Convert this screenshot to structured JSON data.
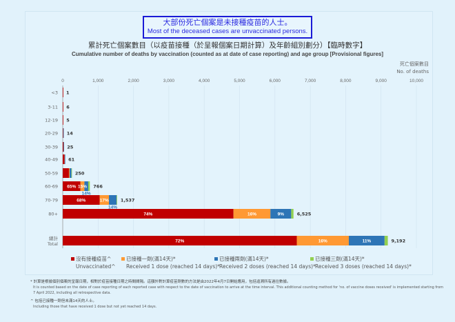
{
  "callout": {
    "zh": "大部份死亡個案是未接種疫苗的人士。",
    "en": "Most of the deceased cases are unvaccinated persons."
  },
  "chart_data": {
    "type": "bar",
    "orientation": "horizontal",
    "stacked": true,
    "title": "累計死亡個案數目（以疫苗接種（於呈報個案日期計算）及年齡組別劃分）【臨時數字】",
    "subtitle": "Cumulative number of deaths by vaccination (counted as at date of case reporting) and age group [Provisional figures]",
    "xlabel": "死亡個案數目 No. of deaths",
    "xlabel_zh": "死亡個案數目",
    "xlabel_en": "No. of deaths",
    "xlim": [
      0,
      10000
    ],
    "xticks": [
      "0",
      "1,000",
      "2,000",
      "3,000",
      "4,000",
      "5,000",
      "6,000",
      "7,000",
      "8,000",
      "9,000",
      "10,000"
    ],
    "grid": true,
    "legend_position": "bottom",
    "categories": [
      "<3",
      "3-11",
      "12-19",
      "20-29",
      "30-39",
      "40-49",
      "50-59",
      "60-69",
      "70-79",
      "80+",
      "總計 Total"
    ],
    "totals": [
      1,
      6,
      5,
      14,
      25,
      61,
      250,
      766,
      1537,
      6525,
      9192
    ],
    "total_labels": [
      "1",
      "6",
      "5",
      "14",
      "25",
      "61",
      "250",
      "766",
      "1,537",
      "6,525",
      "9,192"
    ],
    "series": [
      {
        "name": "沒有接種疫苗^ Unvaccinated^",
        "name_zh": "沒有接種疫苗^",
        "name_en": "Unvaccinated^",
        "color": "#c00000",
        "percent": [
          100,
          100,
          100,
          90,
          85,
          85,
          70,
          65,
          68,
          74,
          72
        ],
        "labels": [
          "",
          "",
          "",
          "",
          "",
          "",
          "",
          "65%",
          "68%",
          "74%",
          "72%"
        ]
      },
      {
        "name": "已接種一劑(滿14天)* Received 1 dose (reached 14 days)*",
        "name_zh": "已接種一劑(滿14天)*",
        "name_en": "Received 1 dose (reached 14 days)*",
        "color": "#ff9933",
        "percent": [
          0,
          0,
          0,
          5,
          10,
          5,
          8,
          15,
          17,
          16,
          16
        ],
        "labels": [
          "",
          "",
          "",
          "",
          "",
          "",
          "",
          "15%",
          "17%",
          "16%",
          "16%"
        ]
      },
      {
        "name": "已接種兩劑(滿14天)* Received 2 doses (reached 14 days)*",
        "name_zh": "已接種兩劑(滿14天)*",
        "name_en": "Received 2 doses (reached 14 days)*",
        "color": "#2e75b6",
        "percent": [
          0,
          0,
          0,
          5,
          5,
          10,
          20,
          14,
          14,
          9,
          11
        ],
        "labels": [
          "",
          "",
          "",
          "",
          "",
          "",
          "",
          "14%",
          "14%",
          "9%",
          "11%"
        ]
      },
      {
        "name": "已接種三劑(滿14天)* Received 3 doses (reached 14 days)*",
        "name_zh": "已接種三劑(滿14天)*",
        "name_en": "Received 3 doses (reached 14 days)*",
        "color": "#92d050",
        "percent": [
          0,
          0,
          0,
          0,
          0,
          0,
          2,
          6,
          1,
          1,
          1
        ],
        "labels": [
          "",
          "",
          "",
          "",
          "",
          "",
          "",
          "",
          "",
          "",
          ""
        ]
      }
    ]
  },
  "notes": {
    "n1_zh": "* 計算是根據個別個案的呈報日期，相對於疫苗接種日期之時間間隔。這額外對計算疫苗劑數的方法是由2022年4月7日開始應用，包括追溯所有過往數據。",
    "n1_en": "It is counted based on the date of case reporting of each reported case with respect to the date of vaccination to arrive at the time interval. This additional counting method for 'no. of vaccine doses received' is implemented starting from 7 April 2022, including all retrospective data.",
    "n2_zh": "^ 包括已接種一劑但未滿14天的人士。",
    "n2_en": "Including those that have received 1 dose but not yet reached 14 days."
  }
}
